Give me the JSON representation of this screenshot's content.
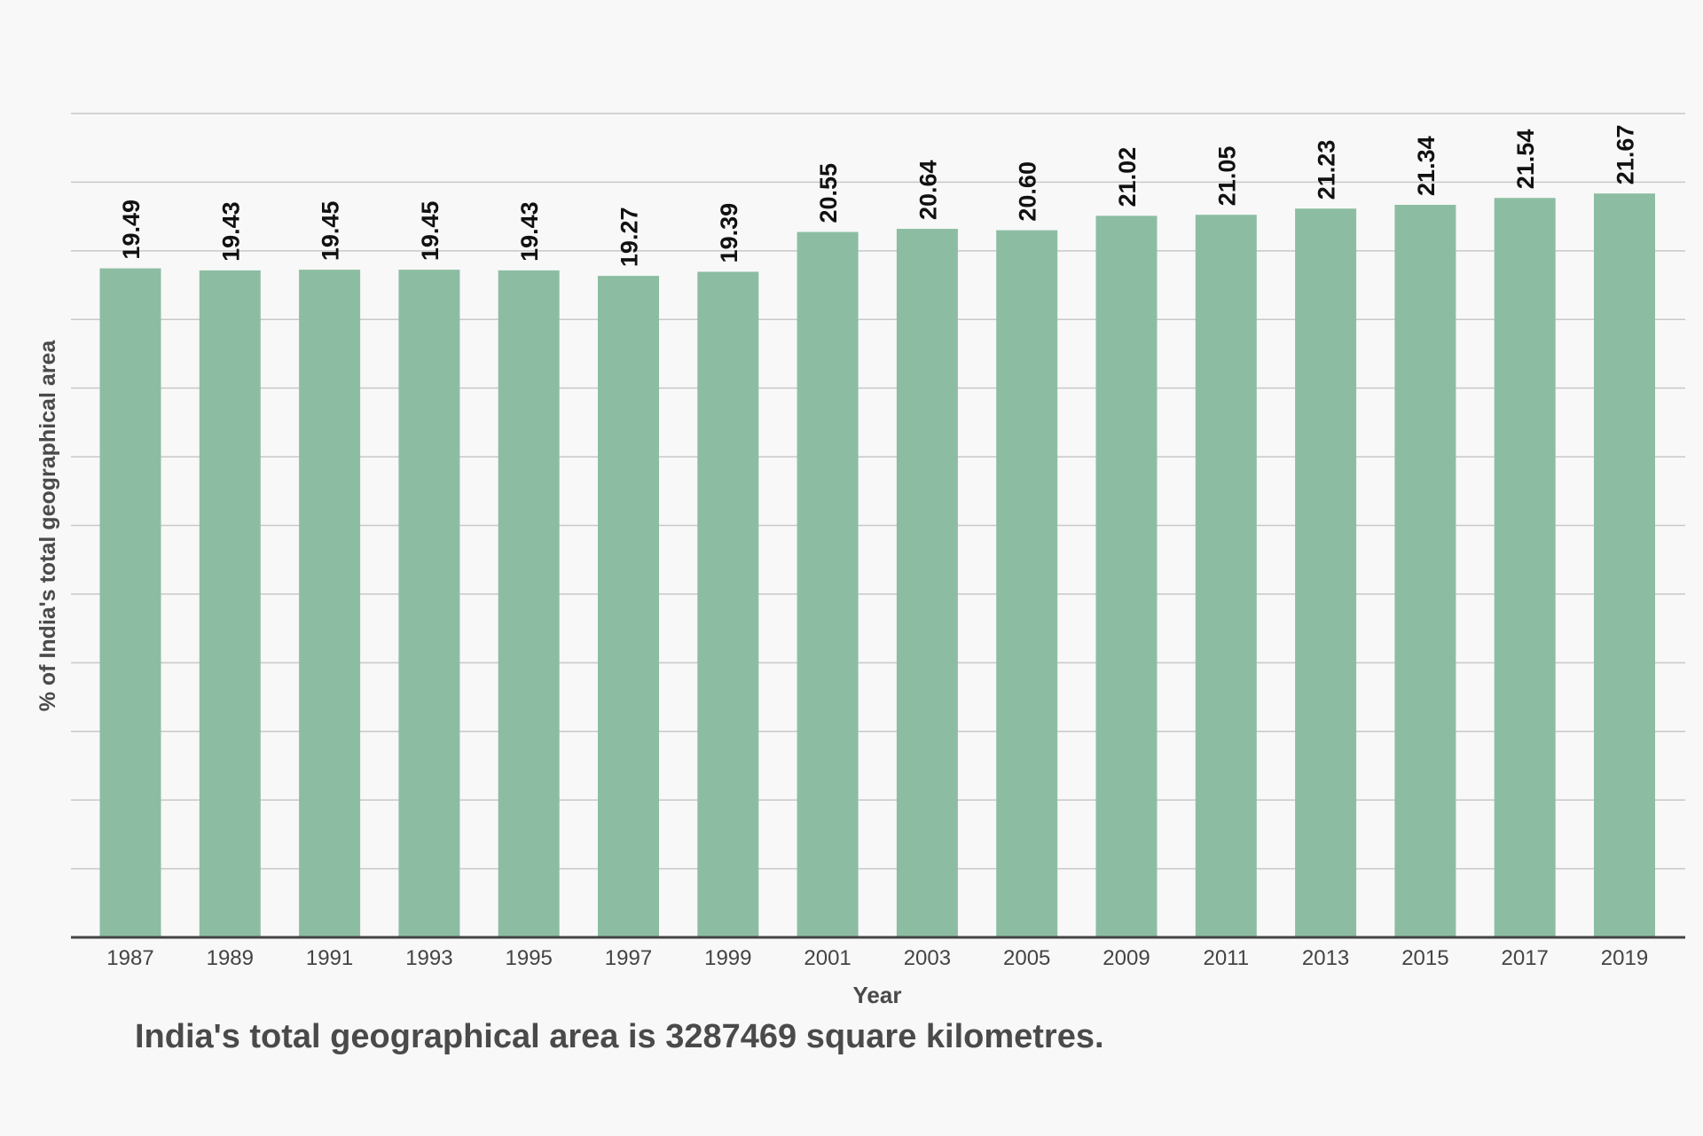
{
  "chart_data": {
    "type": "bar",
    "categories": [
      "1987",
      "1989",
      "1991",
      "1993",
      "1995",
      "1997",
      "1999",
      "2001",
      "2003",
      "2005",
      "2009",
      "2011",
      "2013",
      "2015",
      "2017",
      "2019"
    ],
    "series": [
      {
        "values": [
          19.49,
          19.43,
          19.45,
          19.45,
          19.43,
          19.27,
          19.39,
          20.55,
          20.64,
          20.6,
          21.02,
          21.05,
          21.23,
          21.34,
          21.54,
          21.67
        ]
      }
    ],
    "data_labels": [
      "19.49",
      "19.43",
      "19.45",
      "19.45",
      "19.43",
      "19.27",
      "19.39",
      "20.55",
      "20.64",
      "20.60",
      "21.02",
      "21.05",
      "21.23",
      "21.34",
      "21.54",
      "21.67"
    ],
    "xlabel": "Year",
    "ylabel": "% of India's total geographical area",
    "ylim": [
      0,
      24
    ],
    "y_tick_labels_shown": false,
    "grid": true,
    "legend": "none",
    "bar_color": "#8cbda2",
    "footnote": "India's total geographical area is 3287469 square kilometres."
  }
}
